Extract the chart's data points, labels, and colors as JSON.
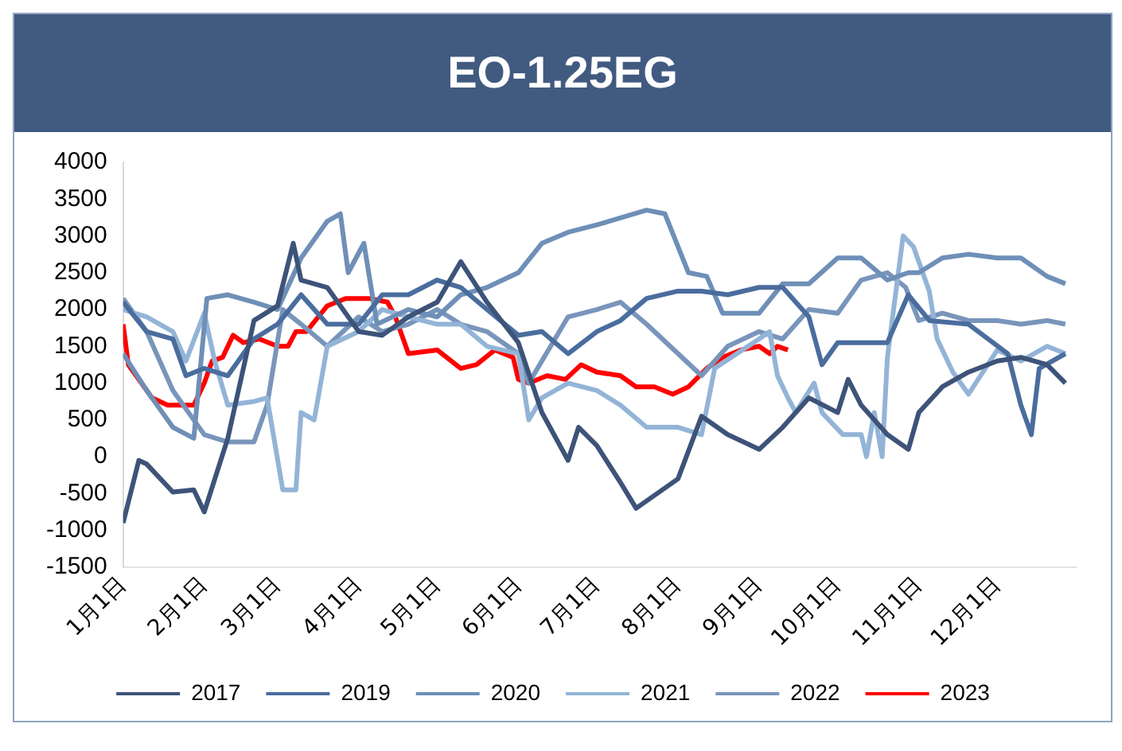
{
  "chart_data": {
    "type": "line",
    "title": "EO-1.25EG",
    "ylim": [
      -1500,
      4000
    ],
    "yticks": [
      -1500,
      -1000,
      -500,
      0,
      500,
      1000,
      1500,
      2000,
      2500,
      3000,
      3500,
      4000
    ],
    "xlim": [
      "--01-01",
      "--12-31"
    ],
    "xticks": [
      {
        "value": "--01-01",
        "label": "1月1日"
      },
      {
        "value": "--02-01",
        "label": "2月1日"
      },
      {
        "value": "--03-01",
        "label": "3月1日"
      },
      {
        "value": "--04-01",
        "label": "4月1日"
      },
      {
        "value": "--05-01",
        "label": "5月1日"
      },
      {
        "value": "--06-01",
        "label": "6月1日"
      },
      {
        "value": "--07-01",
        "label": "7月1日"
      },
      {
        "value": "--08-01",
        "label": "8月1日"
      },
      {
        "value": "--09-01",
        "label": "9月1日"
      },
      {
        "value": "--10-01",
        "label": "10月1日"
      },
      {
        "value": "--11-01",
        "label": "11月1日"
      },
      {
        "value": "--12-01",
        "label": "12月1日"
      }
    ],
    "grid": false,
    "legend": "bottom",
    "marker": "none",
    "line_style": "solid",
    "series": [
      {
        "name": "2017",
        "color": "#3e5379",
        "x": [
          "--01-01",
          "--01-07",
          "--01-10",
          "--01-20",
          "--01-28",
          "--02-01",
          "--02-10",
          "--02-20",
          "--03-01",
          "--03-07",
          "--03-10",
          "--03-20",
          "--04-01",
          "--04-10",
          "--04-20",
          "--05-01",
          "--05-10",
          "--05-20",
          "--06-01",
          "--06-10",
          "--06-20",
          "--06-24",
          "--07-01",
          "--07-10",
          "--07-16",
          "--07-20",
          "--08-01",
          "--08-10",
          "--08-20",
          "--09-01",
          "--09-10",
          "--09-20",
          "--10-01",
          "--10-05",
          "--10-10",
          "--10-20",
          "--10-28",
          "--11-01",
          "--11-10",
          "--11-20",
          "--12-01",
          "--12-10",
          "--12-20",
          "--12-27"
        ],
        "values": [
          -900,
          -50,
          -100,
          -480,
          -450,
          -750,
          250,
          1850,
          2050,
          2900,
          2400,
          2300,
          1700,
          1650,
          1900,
          2100,
          2650,
          2100,
          1550,
          600,
          -50,
          400,
          150,
          -350,
          -700,
          -600,
          -300,
          550,
          300,
          100,
          400,
          800,
          600,
          1050,
          700,
          300,
          100,
          600,
          950,
          1150,
          1300,
          1350,
          1250,
          1000
        ]
      },
      {
        "name": "2019",
        "color": "#4a6d9e",
        "x": [
          "--01-01",
          "--01-10",
          "--01-20",
          "--01-25",
          "--02-01",
          "--02-10",
          "--02-20",
          "--03-01",
          "--03-10",
          "--03-20",
          "--04-01",
          "--04-10",
          "--04-20",
          "--05-01",
          "--05-10",
          "--05-20",
          "--06-01",
          "--06-10",
          "--06-20",
          "--07-01",
          "--07-10",
          "--07-20",
          "--08-01",
          "--08-10",
          "--08-20",
          "--09-01",
          "--09-10",
          "--09-20",
          "--09-25",
          "--10-01",
          "--10-10",
          "--10-20",
          "--10-28",
          "--11-05",
          "--11-20",
          "--12-05",
          "--12-10",
          "--12-14",
          "--12-17",
          "--12-27"
        ],
        "values": [
          2100,
          1700,
          1600,
          1100,
          1200,
          1100,
          1600,
          1800,
          2200,
          1800,
          1800,
          2200,
          2200,
          2400,
          2300,
          2000,
          1650,
          1700,
          1400,
          1700,
          1850,
          2150,
          2250,
          2250,
          2200,
          2300,
          2300,
          1900,
          1250,
          1550,
          1550,
          1550,
          2200,
          1850,
          1800,
          1400,
          700,
          300,
          1200,
          1400
        ]
      },
      {
        "name": "2020",
        "color": "#6e8fb7",
        "x": [
          "--01-01",
          "--01-10",
          "--01-20",
          "--01-28",
          "--02-02",
          "--02-10",
          "--02-20",
          "--03-01",
          "--03-10",
          "--03-20",
          "--03-25",
          "--03-28",
          "--04-03",
          "--04-08",
          "--04-20",
          "--05-01",
          "--05-10",
          "--05-20",
          "--06-01",
          "--06-10",
          "--06-20",
          "--07-01",
          "--07-20",
          "--07-27",
          "--08-05",
          "--08-12",
          "--08-18",
          "--09-01",
          "--09-10",
          "--09-20",
          "--10-01",
          "--10-10",
          "--10-20",
          "--10-28",
          "--11-01",
          "--11-10",
          "--11-20",
          "--12-01",
          "--12-10",
          "--12-20",
          "--12-27"
        ],
        "values": [
          1400,
          900,
          400,
          250,
          2150,
          2200,
          2100,
          2000,
          2700,
          3200,
          3300,
          2500,
          2900,
          1800,
          2000,
          1900,
          2200,
          2300,
          2500,
          2900,
          3050,
          3150,
          3350,
          3300,
          2500,
          2450,
          1950,
          1950,
          2350,
          2350,
          2700,
          2700,
          2400,
          2500,
          2500,
          2700,
          2750,
          2700,
          2700,
          2450,
          2350
        ]
      },
      {
        "name": "2021",
        "color": "#93b4d7",
        "x": [
          "--01-01",
          "--01-10",
          "--01-20",
          "--01-25",
          "--02-01",
          "--02-05",
          "--02-10",
          "--02-20",
          "--02-25",
          "--03-03",
          "--03-08",
          "--03-10",
          "--03-15",
          "--03-20",
          "--04-01",
          "--04-10",
          "--04-20",
          "--05-01",
          "--05-10",
          "--05-20",
          "--06-01",
          "--06-05",
          "--06-10",
          "--06-20",
          "--07-01",
          "--07-10",
          "--07-20",
          "--08-01",
          "--08-10",
          "--08-15",
          "--09-01",
          "--09-05",
          "--09-08",
          "--09-12",
          "--09-15",
          "--09-22",
          "--09-25",
          "--10-03",
          "--10-10",
          "--10-12",
          "--10-15",
          "--10-18",
          "--10-20",
          "--10-26",
          "--10-30",
          "--11-05",
          "--11-08",
          "--11-14",
          "--11-20",
          "--12-01",
          "--12-10",
          "--12-20",
          "--12-27"
        ],
        "values": [
          2000,
          1900,
          1700,
          1300,
          1950,
          1300,
          700,
          750,
          800,
          -450,
          -450,
          600,
          500,
          1500,
          1700,
          2000,
          1900,
          1800,
          1800,
          1500,
          1400,
          500,
          800,
          1000,
          900,
          700,
          400,
          400,
          300,
          1200,
          1600,
          1700,
          1100,
          800,
          600,
          1000,
          600,
          300,
          300,
          0,
          600,
          0,
          1350,
          3000,
          2850,
          2250,
          1600,
          1150,
          850,
          1450,
          1300,
          1500,
          1400
        ]
      },
      {
        "name": "2022",
        "color": "#7995bb",
        "x": [
          "--01-01",
          "--01-10",
          "--01-20",
          "--02-01",
          "--02-10",
          "--02-20",
          "--02-25",
          "--03-03",
          "--03-10",
          "--03-20",
          "--04-01",
          "--04-10",
          "--04-20",
          "--05-01",
          "--05-10",
          "--05-20",
          "--06-01",
          "--06-05",
          "--06-10",
          "--06-20",
          "--07-01",
          "--07-10",
          "--07-20",
          "--08-01",
          "--08-10",
          "--08-20",
          "--09-01",
          "--09-10",
          "--09-20",
          "--10-01",
          "--10-10",
          "--10-20",
          "--10-27",
          "--11-01",
          "--11-10",
          "--11-20",
          "--12-01",
          "--12-10",
          "--12-20",
          "--12-27"
        ],
        "values": [
          2150,
          1700,
          900,
          300,
          200,
          200,
          700,
          2000,
          1800,
          1500,
          1900,
          1700,
          1800,
          2000,
          1800,
          1700,
          1400,
          1000,
          1300,
          1900,
          2000,
          2100,
          1800,
          1400,
          1100,
          1500,
          1700,
          1600,
          2000,
          1950,
          2400,
          2500,
          2300,
          1850,
          1950,
          1850,
          1850,
          1800,
          1850,
          1800
        ]
      },
      {
        "name": "2023",
        "color": "#ff0000",
        "x": [
          "--01-01",
          "--01-03",
          "--01-06",
          "--01-12",
          "--01-18",
          "--01-28",
          "--02-01",
          "--02-04",
          "--02-08",
          "--02-12",
          "--02-16",
          "--02-22",
          "--03-01",
          "--03-05",
          "--03-08",
          "--03-12",
          "--03-20",
          "--03-27",
          "--04-05",
          "--04-12",
          "--04-15",
          "--04-20",
          "--05-01",
          "--05-10",
          "--05-16",
          "--05-23",
          "--05-30",
          "--06-01",
          "--06-05",
          "--06-12",
          "--06-19",
          "--06-25",
          "--07-01",
          "--07-10",
          "--07-16",
          "--07-23",
          "--07-30",
          "--08-05",
          "--08-12",
          "--08-18",
          "--08-25",
          "--09-01",
          "--09-05",
          "--09-08",
          "--09-12"
        ],
        "values": [
          1800,
          1250,
          1100,
          800,
          700,
          700,
          1000,
          1300,
          1350,
          1650,
          1550,
          1600,
          1500,
          1500,
          1700,
          1700,
          2050,
          2150,
          2150,
          2100,
          1900,
          1400,
          1450,
          1200,
          1250,
          1450,
          1350,
          1050,
          1000,
          1100,
          1050,
          1250,
          1150,
          1100,
          950,
          950,
          850,
          950,
          1200,
          1350,
          1450,
          1500,
          1400,
          1500,
          1450
        ]
      }
    ]
  }
}
